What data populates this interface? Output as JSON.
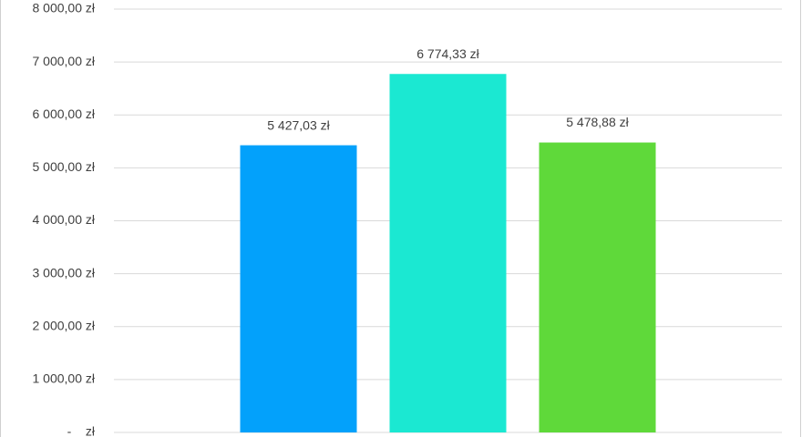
{
  "chart_data": {
    "type": "bar",
    "categories": [
      null
    ],
    "series": [
      {
        "color": "#03a1fb",
        "values": [
          5427.03
        ],
        "value_labels": [
          "5 427,03 zł"
        ]
      },
      {
        "color": "#1be8d2",
        "values": [
          6774.33
        ],
        "value_labels": [
          "6 774,33 zł"
        ]
      },
      {
        "color": "#5fd93a",
        "values": [
          5478.88
        ],
        "value_labels": [
          "5 478,88 zł"
        ]
      }
    ],
    "ylim": [
      0,
      8000
    ],
    "yticks": [
      {
        "value": 0,
        "label": "-    zł"
      },
      {
        "value": 1000,
        "label": "1 000,00 zł"
      },
      {
        "value": 2000,
        "label": "2 000,00 zł"
      },
      {
        "value": 3000,
        "label": "3 000,00 zł"
      },
      {
        "value": 4000,
        "label": "4 000,00 zł"
      },
      {
        "value": 5000,
        "label": "5 000,00 zł"
      },
      {
        "value": 6000,
        "label": "6 000,00 zł"
      },
      {
        "value": 7000,
        "label": "7 000,00 zł"
      },
      {
        "value": 8000,
        "label": "8 000,00 zł"
      }
    ],
    "grid": true
  }
}
